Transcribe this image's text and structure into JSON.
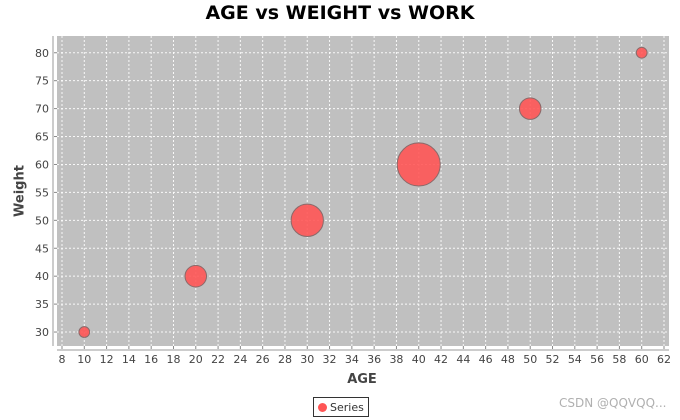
{
  "chart_data": {
    "type": "scatter",
    "title": "AGE vs WEIGHT vs WORK",
    "xlabel": "AGE",
    "ylabel": "Weight",
    "xlim": [
      8,
      62
    ],
    "ylim": [
      27.5,
      83
    ],
    "x_ticks": [
      "8",
      "10",
      "12",
      "14",
      "16",
      "18",
      "20",
      "22",
      "24",
      "26",
      "28",
      "30",
      "32",
      "34",
      "36",
      "38",
      "40",
      "42",
      "44",
      "46",
      "48",
      "50",
      "52",
      "54",
      "56",
      "58",
      "60",
      "62"
    ],
    "y_ticks": [
      "30",
      "35",
      "40",
      "45",
      "50",
      "55",
      "60",
      "65",
      "70",
      "75",
      "80"
    ],
    "grid": true,
    "legend_position": "bottom",
    "series": [
      {
        "name": "Series",
        "color": "#ff5555",
        "points": [
          {
            "x": 10,
            "y": 30,
            "size": 1
          },
          {
            "x": 20,
            "y": 40,
            "size": 2
          },
          {
            "x": 30,
            "y": 50,
            "size": 3
          },
          {
            "x": 40,
            "y": 60,
            "size": 4
          },
          {
            "x": 50,
            "y": 70,
            "size": 2
          },
          {
            "x": 60,
            "y": 80,
            "size": 1
          }
        ]
      }
    ]
  },
  "watermark": "CSDN @QQVQQ..."
}
